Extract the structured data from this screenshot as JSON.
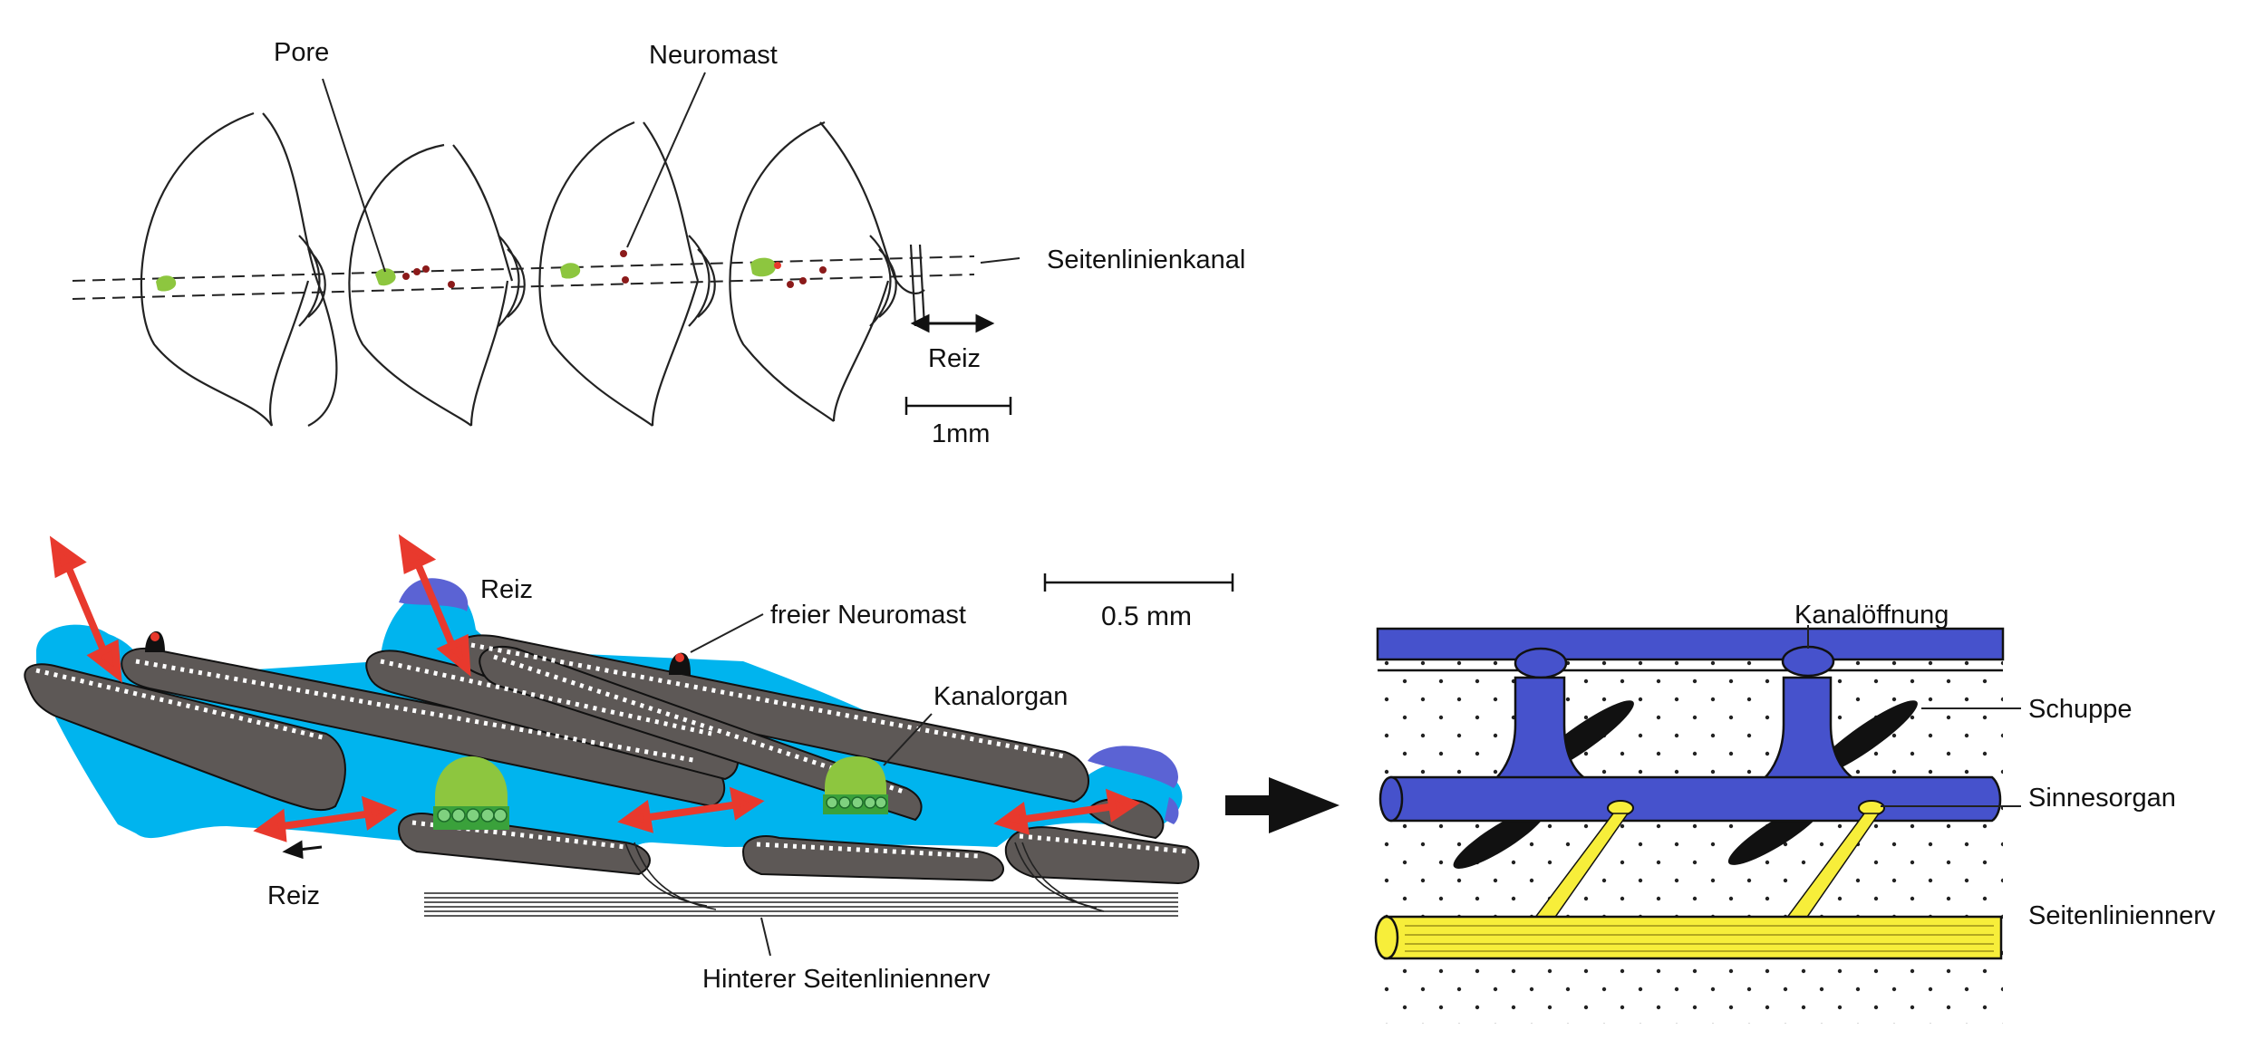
{
  "panel_top": {
    "labels": {
      "pore": "Pore",
      "neuromast": "Neuromast",
      "canal": "Seitenlinienkanal",
      "stimulus": "Reiz",
      "scale": "1mm"
    }
  },
  "panel_bottom_left": {
    "labels": {
      "stimulus_top": "Reiz",
      "free_neuromast": "freier Neuromast",
      "scale": "0.5 mm",
      "canal_organ": "Kanalorgan",
      "stimulus_bottom": "Reiz",
      "posterior_nerve": "Hinterer Seitenliniennerv"
    }
  },
  "panel_right": {
    "labels": {
      "canal_opening": "Kanalöffnung",
      "scale_bone": "Schuppe",
      "sense_organ": "Sinnesorgan",
      "nerve": "Seitenliniennerv"
    }
  },
  "colors": {
    "canal_fluid": "#00b4ee",
    "cupula": "#8dc63f",
    "hair_cells": "#3aa13b",
    "stimulus_arrow": "#e8392d",
    "canal_blue": "#4652cc",
    "nerve_yellow": "#f7ee3a",
    "scale_grey": "#5d5856"
  }
}
